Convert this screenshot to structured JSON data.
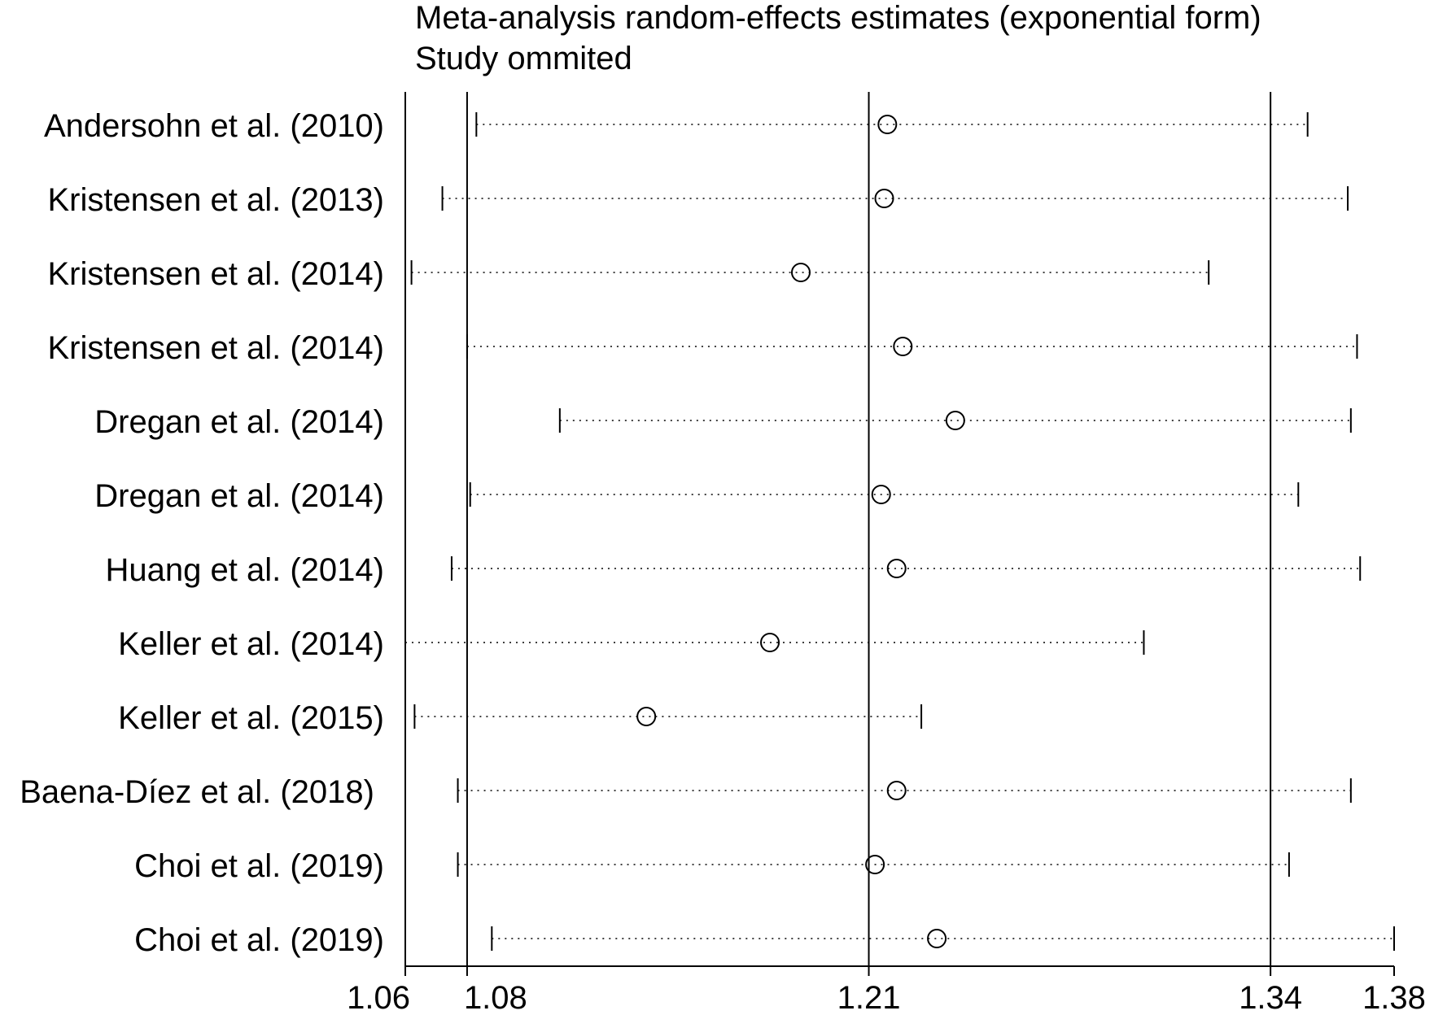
{
  "chart_data": {
    "type": "scatter",
    "title": "Meta-analysis random-effects estimates (exponential form)",
    "subtitle": "Study ommited",
    "xlim": [
      1.06,
      1.38
    ],
    "xticks": [
      1.06,
      1.08,
      1.21,
      1.34,
      1.38
    ],
    "xtick_labels": [
      "1.06",
      "1.08",
      "1.21",
      "1.34",
      "1.38"
    ],
    "reference_lines": [
      1.08,
      1.21,
      1.34
    ],
    "grid": false,
    "studies": [
      {
        "label": "Andersohn et al. (2010)",
        "estimate": 1.216,
        "lower": 1.083,
        "upper": 1.352
      },
      {
        "label": "Kristensen et al. (2013)",
        "estimate": 1.215,
        "lower": 1.072,
        "upper": 1.365
      },
      {
        "label": "Kristensen et al. (2014)",
        "estimate": 1.188,
        "lower": 1.062,
        "upper": 1.32
      },
      {
        "label": "Kristensen et al. (2014)",
        "estimate": 1.221,
        "lower": 1.08,
        "upper": 1.368
      },
      {
        "label": "Dregan et al. (2014)",
        "estimate": 1.238,
        "lower": 1.11,
        "upper": 1.366
      },
      {
        "label": "Dregan et al. (2014)",
        "estimate": 1.214,
        "lower": 1.081,
        "upper": 1.349
      },
      {
        "label": "Huang et al. (2014)",
        "estimate": 1.219,
        "lower": 1.075,
        "upper": 1.369
      },
      {
        "label": "Keller et al. (2014)",
        "estimate": 1.178,
        "lower": 1.06,
        "upper": 1.299
      },
      {
        "label": "Keller et al. (2015)",
        "estimate": 1.138,
        "lower": 1.063,
        "upper": 1.227
      },
      {
        "label": "Baena-Díez et al. (2018)",
        "estimate": 1.219,
        "lower": 1.077,
        "upper": 1.366
      },
      {
        "label": "Choi et al. (2019)",
        "estimate": 1.212,
        "lower": 1.077,
        "upper": 1.346
      },
      {
        "label": "Choi et al. (2019)",
        "estimate": 1.232,
        "lower": 1.088,
        "upper": 1.38
      }
    ]
  }
}
